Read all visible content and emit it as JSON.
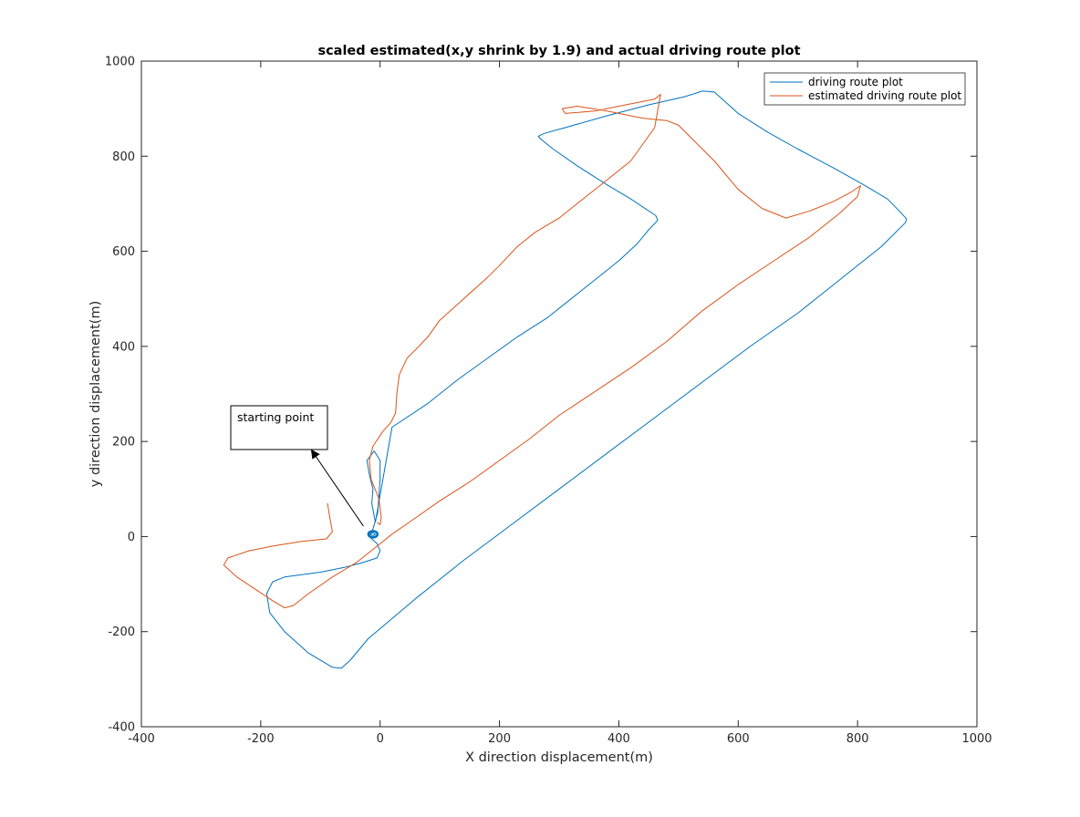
{
  "chart_data": {
    "type": "line",
    "title": "scaled estimated(x,y shrink by 1.9) and actual driving route plot",
    "xlabel": "X direction displacement(m)",
    "ylabel": "y direction displacement(m)",
    "xlim": [
      -400,
      1000
    ],
    "ylim": [
      -400,
      1000
    ],
    "xticks": [
      -400,
      -200,
      0,
      200,
      400,
      600,
      800,
      1000
    ],
    "yticks": [
      -400,
      -200,
      0,
      200,
      400,
      600,
      800,
      1000
    ],
    "xtick_labels": [
      "-400",
      "-200",
      "0",
      "200",
      "400",
      "600",
      "800",
      "1000"
    ],
    "ytick_labels": [
      "-400",
      "-200",
      "0",
      "200",
      "400",
      "600",
      "800",
      "1000"
    ],
    "grid": false,
    "legend_position": "top-right",
    "series": [
      {
        "name": "driving route plot",
        "color": "#0072BD",
        "x": [
          -18,
          -12,
          -8,
          -12,
          -18,
          -14,
          -4,
          0,
          0,
          -10,
          -22,
          -18,
          -12,
          -14,
          -8,
          20,
          80,
          130,
          180,
          230,
          280,
          320,
          360,
          400,
          430,
          450,
          465,
          462,
          420,
          380,
          330,
          290,
          270,
          265,
          275,
          310,
          380,
          450,
          510,
          540,
          560,
          600,
          650,
          700,
          760,
          810,
          850,
          870,
          882,
          880,
          840,
          780,
          700,
          620,
          540,
          460,
          380,
          300,
          220,
          140,
          60,
          -20,
          -50,
          -65,
          -80,
          -120,
          -160,
          -185,
          -190,
          -180,
          -160,
          -100,
          -60,
          -30,
          -5,
          0,
          -5,
          -18
        ],
        "y": [
          5,
          8,
          5,
          2,
          5,
          8,
          50,
          120,
          160,
          180,
          160,
          130,
          100,
          70,
          30,
          230,
          280,
          330,
          375,
          420,
          460,
          500,
          540,
          580,
          615,
          645,
          665,
          675,
          710,
          740,
          780,
          815,
          835,
          842,
          848,
          860,
          885,
          908,
          925,
          937,
          935,
          890,
          850,
          815,
          775,
          740,
          710,
          685,
          668,
          660,
          610,
          550,
          470,
          400,
          325,
          250,
          175,
          100,
          25,
          -50,
          -130,
          -215,
          -260,
          -277,
          -275,
          -245,
          -200,
          -160,
          -120,
          -95,
          -85,
          -75,
          -65,
          -55,
          -45,
          -30,
          -15,
          0
        ]
      },
      {
        "name": "estimated driving route plot",
        "color": "#D95319",
        "x": [
          -88,
          -85,
          -80,
          -90,
          -130,
          -180,
          -220,
          -255,
          -262,
          -240,
          -210,
          -180,
          -160,
          -145,
          -120,
          -80,
          -40,
          -10,
          20,
          60,
          100,
          150,
          200,
          250,
          300,
          360,
          420,
          480,
          540,
          600,
          660,
          720,
          770,
          800,
          805,
          790,
          760,
          720,
          680,
          640,
          600,
          560,
          520,
          500,
          480,
          440,
          380,
          330,
          305,
          310,
          360,
          420,
          460,
          470,
          460,
          420,
          370,
          330,
          300,
          260,
          230,
          200,
          180,
          140,
          100,
          80,
          65,
          45,
          32,
          28,
          26,
          18,
          4,
          -12,
          -18,
          -15,
          -2,
          2,
          0,
          -5
        ],
        "y": [
          70,
          45,
          10,
          -5,
          -10,
          -20,
          -30,
          -45,
          -60,
          -85,
          -110,
          -135,
          -150,
          -145,
          -120,
          -85,
          -55,
          -25,
          5,
          40,
          75,
          115,
          160,
          205,
          255,
          305,
          355,
          410,
          475,
          530,
          580,
          630,
          680,
          715,
          738,
          725,
          705,
          685,
          670,
          690,
          730,
          790,
          840,
          865,
          875,
          880,
          895,
          905,
          900,
          890,
          895,
          910,
          920,
          930,
          860,
          790,
          740,
          700,
          670,
          640,
          610,
          570,
          545,
          500,
          455,
          420,
          400,
          375,
          340,
          300,
          260,
          240,
          220,
          190,
          160,
          120,
          80,
          40,
          25,
          30
        ]
      }
    ],
    "annotation": {
      "text": "starting point",
      "arrow_from": [
        -28,
        22
      ],
      "arrow_to": [
        -115,
        182
      ]
    },
    "start_marker": {
      "x": -12,
      "y": 5
    }
  }
}
